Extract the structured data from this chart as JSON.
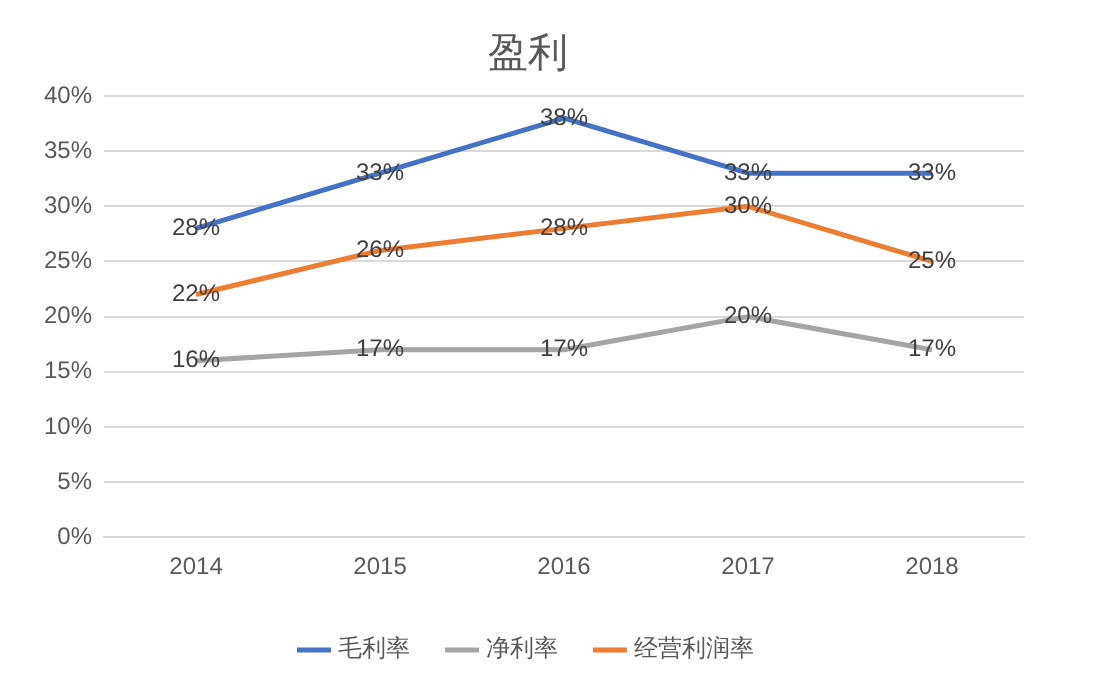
{
  "chart_data": {
    "type": "line",
    "title": "盈利",
    "categories": [
      "2014",
      "2015",
      "2016",
      "2017",
      "2018"
    ],
    "series": [
      {
        "name": "毛利率",
        "color": "#4472c4",
        "values": [
          28,
          33,
          38,
          33,
          33
        ],
        "value_labels": [
          "28%",
          "33%",
          "38%",
          "33%",
          "33%"
        ]
      },
      {
        "name": "净利率",
        "color": "#a5a5a5",
        "values": [
          16,
          17,
          17,
          20,
          17
        ],
        "value_labels": [
          "16%",
          "17%",
          "17%",
          "20%",
          "17%"
        ]
      },
      {
        "name": "经营利润率",
        "color": "#ed7d31",
        "values": [
          22,
          26,
          28,
          30,
          25
        ],
        "value_labels": [
          "22%",
          "26%",
          "28%",
          "30%",
          "25%"
        ]
      }
    ],
    "ylim": [
      0,
      40
    ],
    "yticks": [
      {
        "value": 0,
        "label": "0%"
      },
      {
        "value": 5,
        "label": "5%"
      },
      {
        "value": 10,
        "label": "10%"
      },
      {
        "value": 15,
        "label": "15%"
      },
      {
        "value": 20,
        "label": "20%"
      },
      {
        "value": 25,
        "label": "25%"
      },
      {
        "value": 30,
        "label": "30%"
      },
      {
        "value": 35,
        "label": "35%"
      },
      {
        "value": 40,
        "label": "40%"
      }
    ],
    "grid": "y",
    "legend": "bottom",
    "line_style": "solid"
  }
}
